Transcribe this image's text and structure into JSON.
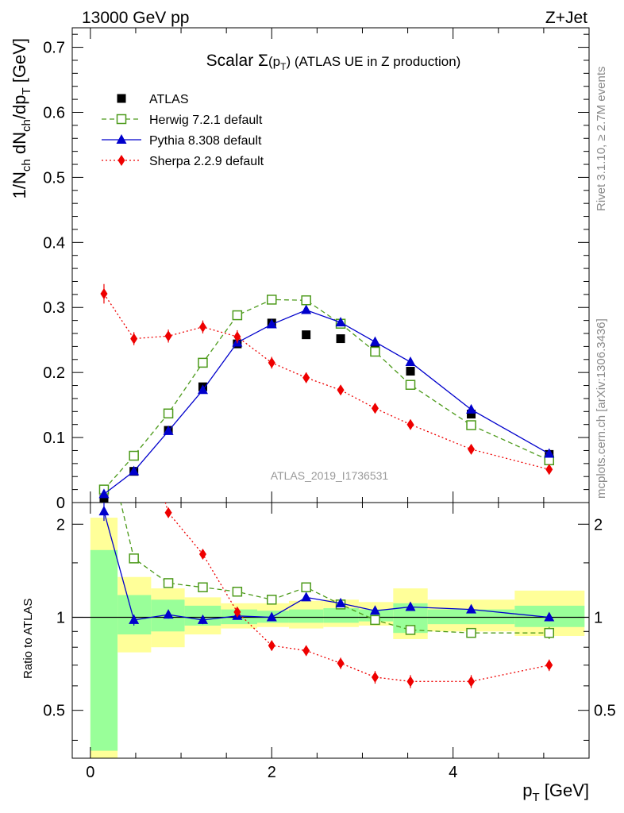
{
  "header": {
    "left": "13000 GeV pp",
    "right": "Z+Jet"
  },
  "side_labels": {
    "top": "Rivet 3.1.10, ≥ 2.7M events",
    "bottom": "mcplots.cern.ch [arXiv:1306.3436]"
  },
  "chart_data": {
    "type": "line",
    "title": "Scalar Σ(p_T) (ATLAS UE in Z production)",
    "analysis_label": "ATLAS_2019_I1736531",
    "xlabel": "p_T [GeV]",
    "ylabel": "1/N_ch dN_ch/dp_T [GeV]",
    "ratio_ylabel": "Ratio to ATLAS",
    "xlim": [
      -0.2,
      5.5
    ],
    "ylim": [
      0,
      0.73
    ],
    "ratio_ylim": [
      0.35,
      2.35
    ],
    "ratio_log_scale": true,
    "x_ticks": [
      "0",
      "2",
      "4"
    ],
    "y_ticks": [
      "0",
      "0.1",
      "0.2",
      "0.3",
      "0.4",
      "0.5",
      "0.6",
      "0.7"
    ],
    "ratio_ticks": [
      "0.5",
      "1",
      "2"
    ],
    "legend_position": "top-left",
    "bins": [
      {
        "lo": 0.0,
        "hi": 0.3
      },
      {
        "lo": 0.3,
        "hi": 0.67
      },
      {
        "lo": 0.67,
        "hi": 1.04
      },
      {
        "lo": 1.04,
        "hi": 1.44
      },
      {
        "lo": 1.44,
        "hi": 1.84
      },
      {
        "lo": 1.84,
        "hi": 2.19
      },
      {
        "lo": 2.19,
        "hi": 2.57
      },
      {
        "lo": 2.57,
        "hi": 2.96
      },
      {
        "lo": 2.96,
        "hi": 3.34
      },
      {
        "lo": 3.34,
        "hi": 3.72
      },
      {
        "lo": 3.72,
        "hi": 4.68
      },
      {
        "lo": 4.68,
        "hi": 5.45
      }
    ],
    "x": [
      0.15,
      0.48,
      0.86,
      1.24,
      1.62,
      2.0,
      2.38,
      2.76,
      3.14,
      3.53,
      4.2,
      5.06
    ],
    "ref_band": {
      "stat_lo": [
        0.37,
        0.88,
        0.9,
        0.94,
        0.95,
        0.96,
        0.96,
        0.96,
        0.97,
        0.89,
        0.95,
        0.93
      ],
      "stat_hi": [
        1.65,
        1.18,
        1.14,
        1.09,
        1.06,
        1.05,
        1.06,
        1.07,
        1.06,
        1.11,
        1.06,
        1.09
      ],
      "tot_lo": [
        0.35,
        0.77,
        0.8,
        0.88,
        0.92,
        0.93,
        0.92,
        0.93,
        0.94,
        0.85,
        0.9,
        0.87
      ],
      "tot_hi": [
        2.1,
        1.35,
        1.24,
        1.16,
        1.11,
        1.11,
        1.13,
        1.14,
        1.12,
        1.24,
        1.14,
        1.22
      ]
    },
    "series": [
      {
        "name": "ATLAS",
        "color": "#000000",
        "marker": "square-filled",
        "values": [
          0.005,
          0.048,
          0.111,
          0.178,
          0.244,
          0.276,
          0.258,
          0.252,
          0.235,
          0.202,
          0.136,
          0.074
        ],
        "errors": [
          0.001,
          0.002,
          0.003,
          0.003,
          0.003,
          0.003,
          0.003,
          0.003,
          0.003,
          0.003,
          0.002,
          0.002
        ]
      },
      {
        "name": "Herwig 7.2.1 default",
        "color": "#4c9a1a",
        "marker": "square-open",
        "line": "dashed",
        "values": [
          0.02,
          0.072,
          0.137,
          0.215,
          0.288,
          0.312,
          0.311,
          0.275,
          0.232,
          0.181,
          0.119,
          0.065
        ],
        "errors": [
          0.002,
          0.003,
          0.004,
          0.005,
          0.006,
          0.006,
          0.006,
          0.006,
          0.005,
          0.004,
          0.003,
          0.002
        ],
        "ratio": [
          4.0,
          1.55,
          1.29,
          1.25,
          1.21,
          1.14,
          1.25,
          1.1,
          0.98,
          0.91,
          0.89,
          0.89
        ],
        "ratio_errors": [
          0.1,
          0.05,
          0.04,
          0.03,
          0.03,
          0.03,
          0.03,
          0.03,
          0.03,
          0.03,
          0.03,
          0.04
        ]
      },
      {
        "name": "Pythia 8.308 default",
        "color": "#0000cc",
        "marker": "triangle-filled",
        "line": "solid",
        "values": [
          0.013,
          0.048,
          0.11,
          0.173,
          0.246,
          0.274,
          0.296,
          0.277,
          0.247,
          0.216,
          0.143,
          0.075
        ],
        "errors": [
          0.002,
          0.003,
          0.003,
          0.004,
          0.005,
          0.005,
          0.006,
          0.005,
          0.005,
          0.004,
          0.003,
          0.002
        ],
        "ratio": [
          2.2,
          0.98,
          1.02,
          0.98,
          1.01,
          1.0,
          1.16,
          1.11,
          1.05,
          1.08,
          1.06,
          1.0
        ],
        "ratio_errors": [
          0.15,
          0.04,
          0.03,
          0.03,
          0.02,
          0.02,
          0.03,
          0.03,
          0.03,
          0.03,
          0.03,
          0.03
        ]
      },
      {
        "name": "Sherpa 2.2.9 default",
        "color": "#ee0000",
        "marker": "diamond-filled",
        "line": "dotted",
        "values": [
          0.321,
          0.252,
          0.256,
          0.27,
          0.255,
          0.215,
          0.192,
          0.173,
          0.145,
          0.12,
          0.082,
          0.051
        ],
        "errors": [
          0.015,
          0.01,
          0.01,
          0.01,
          0.01,
          0.009,
          0.008,
          0.007,
          0.007,
          0.006,
          0.004,
          0.003
        ],
        "ratio": [
          60.0,
          5.2,
          2.18,
          1.6,
          1.04,
          0.81,
          0.78,
          0.71,
          0.64,
          0.62,
          0.62,
          0.7
        ],
        "ratio_errors": [
          2.0,
          0.2,
          0.08,
          0.05,
          0.04,
          0.03,
          0.03,
          0.03,
          0.03,
          0.03,
          0.03,
          0.03
        ]
      }
    ]
  }
}
